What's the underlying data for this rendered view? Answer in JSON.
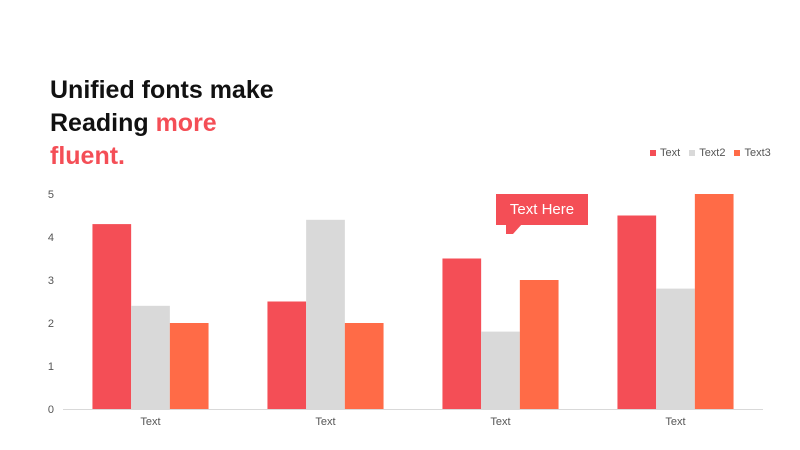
{
  "title": {
    "line1": "Unified fonts make",
    "line2_plain": "Reading ",
    "line2_accent": "more",
    "line3_accent": "fluent."
  },
  "callout": {
    "text": "Text Here"
  },
  "colors": {
    "accent": "#f44e56",
    "grey": "#d9d9d9",
    "orange": "#ff6b47"
  },
  "chart_data": {
    "type": "bar",
    "categories": [
      "Text",
      "Text",
      "Text",
      "Text"
    ],
    "series": [
      {
        "name": "Text",
        "values": [
          4.3,
          2.5,
          3.5,
          4.5
        ],
        "color": "#f44e56"
      },
      {
        "name": "Text2",
        "values": [
          2.4,
          4.4,
          1.8,
          2.8
        ],
        "color": "#d9d9d9"
      },
      {
        "name": "Text3",
        "values": [
          2.0,
          2.0,
          3.0,
          5.0
        ],
        "color": "#ff6b47"
      }
    ],
    "ylim": [
      0,
      5
    ],
    "yticks": [
      0,
      1,
      2,
      3,
      4,
      5
    ],
    "grid": false,
    "legend_position": "top-right"
  }
}
